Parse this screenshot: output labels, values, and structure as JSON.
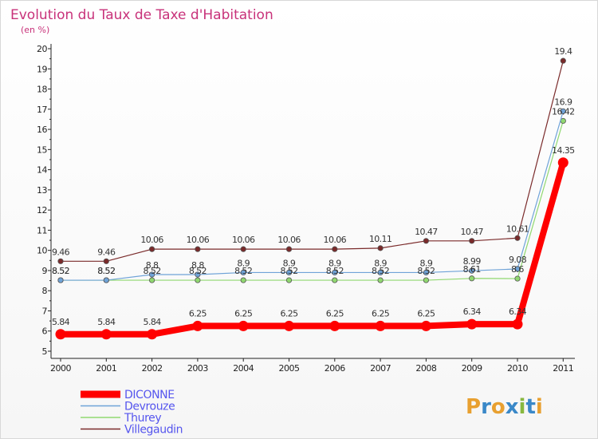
{
  "chart_data": {
    "type": "line",
    "title": "Evolution du Taux de Taxe d'Habitation",
    "subtitle": "(en %)",
    "xlabel": "",
    "ylabel": "",
    "x": [
      "2000",
      "2001",
      "2002",
      "2003",
      "2004",
      "2005",
      "2006",
      "2007",
      "2008",
      "2009",
      "2010",
      "2011"
    ],
    "ylim": [
      5,
      20
    ],
    "yticks": [
      5,
      6,
      7,
      8,
      9,
      10,
      11,
      12,
      13,
      14,
      15,
      16,
      17,
      18,
      19,
      20
    ],
    "legend_position": "bottom-left",
    "series": [
      {
        "name": "DICONNE",
        "color": "#ff0000",
        "values": [
          5.84,
          5.84,
          5.84,
          6.25,
          6.25,
          6.25,
          6.25,
          6.25,
          6.25,
          6.34,
          6.34,
          14.35
        ],
        "labels": [
          "5.84",
          "5.84",
          "5.84",
          "6.25",
          "6.25",
          "6.25",
          "6.25",
          "6.25",
          "6.25",
          "6.34",
          "6.34",
          "14.35"
        ]
      },
      {
        "name": "Devrouze",
        "color": "#6fa3d8",
        "values": [
          8.52,
          8.52,
          8.8,
          8.8,
          8.9,
          8.9,
          8.9,
          8.9,
          8.9,
          8.99,
          9.08,
          16.9
        ],
        "labels": [
          "8.52",
          "8.52",
          "8.8",
          "8.8",
          "8.9",
          "8.9",
          "8.9",
          "8.9",
          "8.9",
          "8.99",
          "9.08",
          "16.9"
        ]
      },
      {
        "name": "Thurey",
        "color": "#90d870",
        "values": [
          8.52,
          8.52,
          8.52,
          8.52,
          8.52,
          8.52,
          8.52,
          8.52,
          8.52,
          8.61,
          8.6,
          16.42
        ],
        "labels": [
          "8.52",
          "8.52",
          "8.52",
          "8.52",
          "8.52",
          "8.52",
          "8.52",
          "8.52",
          "8.52",
          "8.61",
          "8.6",
          "16.42"
        ]
      },
      {
        "name": "Villegaudin",
        "color": "#7a2a2a",
        "values": [
          9.46,
          9.46,
          10.06,
          10.06,
          10.06,
          10.06,
          10.06,
          10.11,
          10.47,
          10.47,
          10.61,
          19.4
        ],
        "labels": [
          "9.46",
          "9.46",
          "10.06",
          "10.06",
          "10.06",
          "10.06",
          "10.06",
          "10.11",
          "10.47",
          "10.47",
          "10.61",
          "19.4"
        ]
      }
    ]
  },
  "legend": {
    "text_color": "#5555ee",
    "items": [
      "DICONNE",
      "Devrouze",
      "Thurey",
      "Villegaudin"
    ]
  },
  "logo": {
    "text": "Proxiti",
    "colors": [
      "#e8a030",
      "#3a88c8",
      "#e8a030",
      "#3a88c8",
      "#88b840",
      "#3a88c8",
      "#e8a030"
    ]
  }
}
